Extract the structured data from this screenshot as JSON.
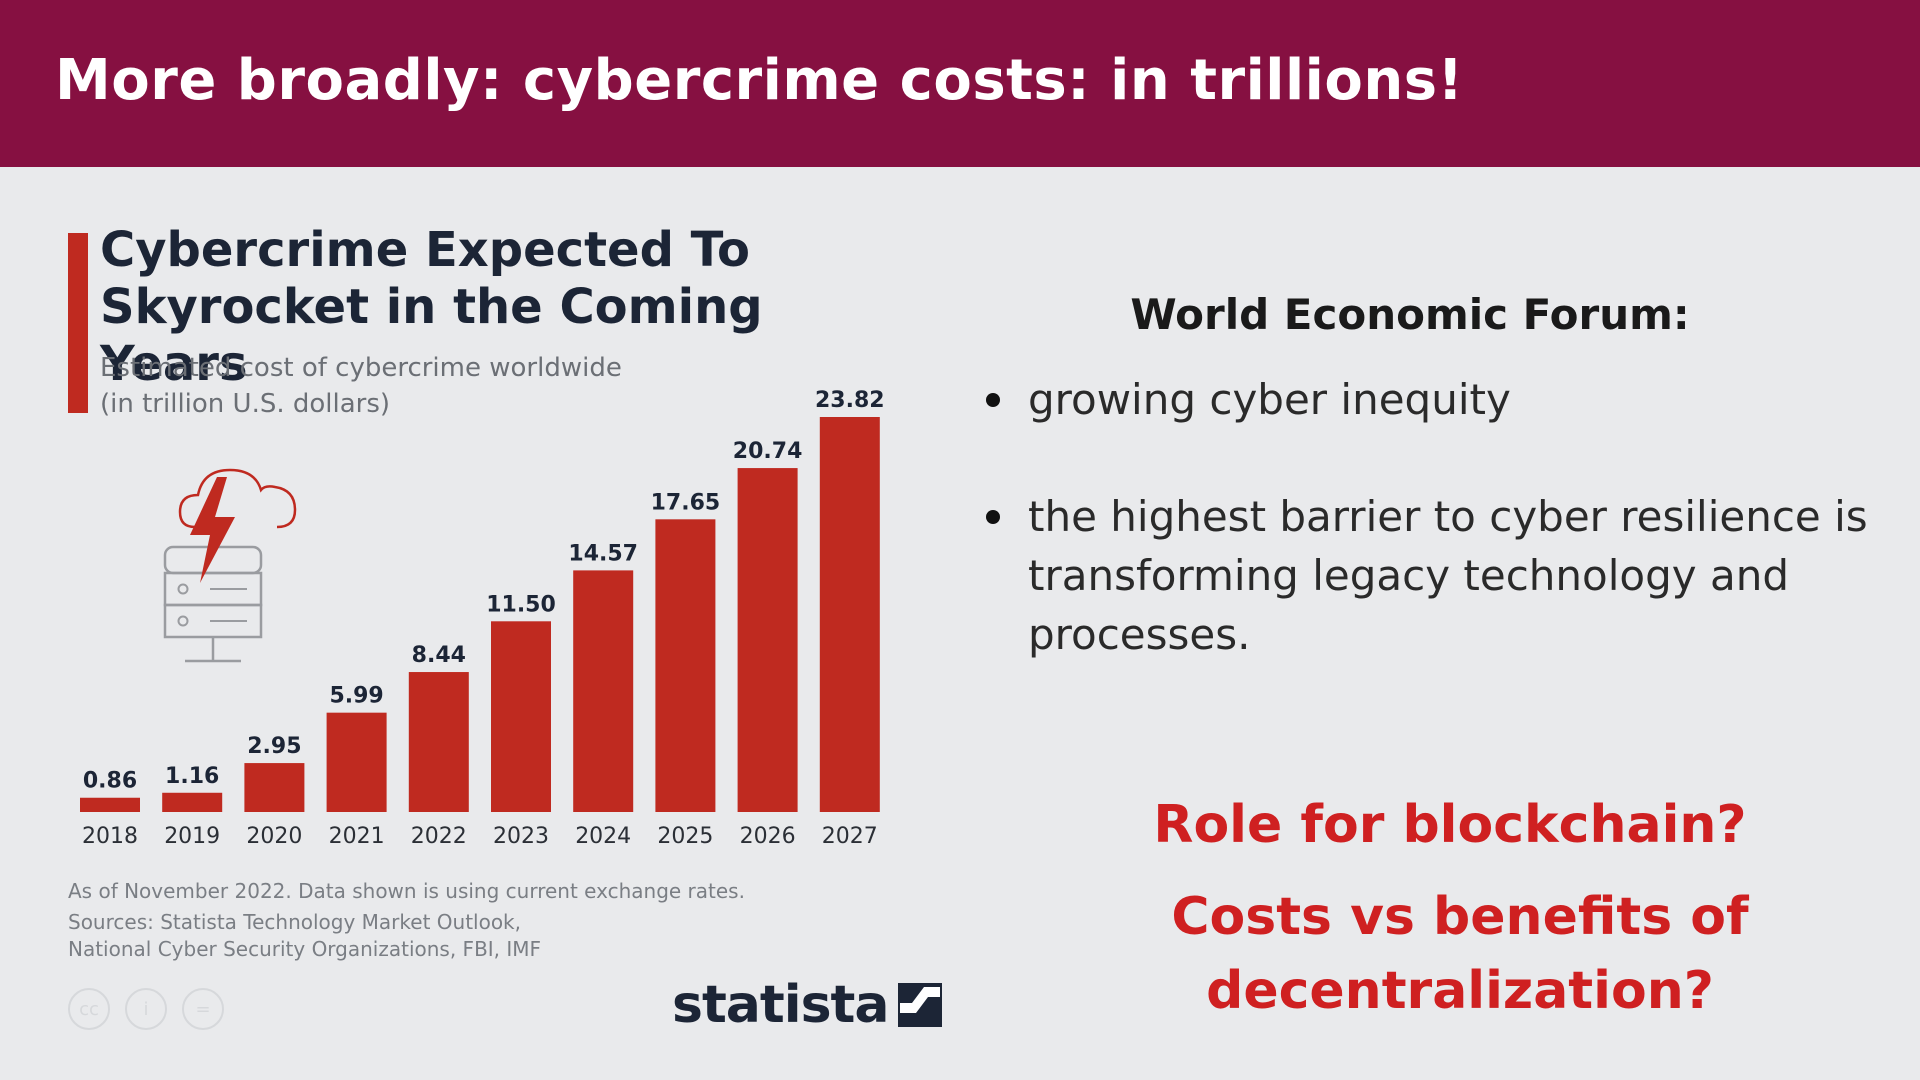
{
  "slide": {
    "title": "More broadly: cybercrime costs: in trillions!"
  },
  "chart_data": {
    "type": "bar",
    "title": "Cybercrime Expected To Skyrocket in the Coming Years",
    "subtitle": [
      "Estimated cost of cybercrime worldwide",
      "(in trillion U.S. dollars)"
    ],
    "categories": [
      "2018",
      "2019",
      "2020",
      "2021",
      "2022",
      "2023",
      "2024",
      "2025",
      "2026",
      "2027"
    ],
    "values": [
      0.86,
      1.16,
      2.95,
      5.99,
      8.44,
      11.5,
      14.57,
      17.65,
      20.74,
      23.82
    ],
    "value_labels": [
      "0.86",
      "1.16",
      "2.95",
      "5.99",
      "8.44",
      "11.50",
      "14.57",
      "17.65",
      "20.74",
      "23.82"
    ],
    "ylim": [
      0,
      23.82
    ],
    "grid": false,
    "legend": "none",
    "bar_color": "#bf2a20",
    "notes": [
      "As of November 2022. Data shown is using current exchange rates.",
      "Sources: Statista Technology Market Outlook,",
      "National Cyber Security Organizations, FBI, IMF"
    ],
    "share_icons": [
      "creative-commons-icon",
      "attribution-icon",
      "no-derivatives-icon"
    ],
    "brand": "statista"
  },
  "panel": {
    "heading": "World Economic Forum:",
    "bullets": [
      "growing cyber inequity",
      "the highest barrier to cyber resilience is transforming legacy technology and processes."
    ],
    "questions": [
      "Role for blockchain?",
      "Costs vs benefits of decentralization?"
    ]
  },
  "colors": {
    "header": "#861041",
    "accent": "#bf2a20",
    "question": "#cf2021"
  }
}
